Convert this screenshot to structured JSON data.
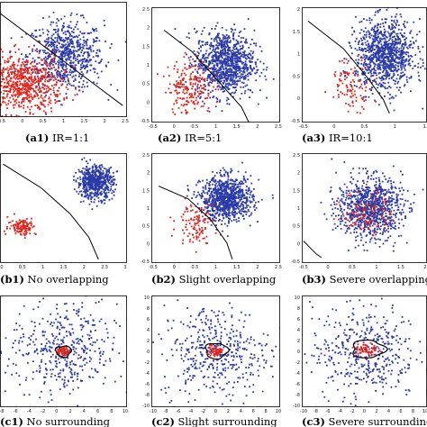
{
  "colors": {
    "majority": "#2b3aa6",
    "minority": "#e0241b",
    "boundary": "#000000",
    "frame": "#000000"
  },
  "chart_data": [
    {
      "id": "a1",
      "type": "scatter",
      "caption_id": "(a1)",
      "caption_text": " IR=1:1",
      "xlim": [
        -0.5,
        2.5
      ],
      "ylim": [
        -0.5,
        2.5
      ],
      "xticks": [
        "0.5",
        "0",
        "0.5",
        "1",
        "1.5",
        "2",
        "2.5"
      ],
      "yticks": [],
      "majority": {
        "n": 700,
        "cx": 1.05,
        "cy": 1.1,
        "sx": 0.45,
        "sy": 0.45
      },
      "minority": {
        "n": 700,
        "cx": 0.05,
        "cy": 0.35,
        "sx": 0.45,
        "sy": 0.38
      },
      "boundary": {
        "kind": "line",
        "points": [
          [
            -0.5,
            2.2
          ],
          [
            2.4,
            -0.2
          ]
        ]
      }
    },
    {
      "id": "a2",
      "type": "scatter",
      "caption_id": "(a2)",
      "caption_text": " IR=5:1",
      "xlim": [
        -1,
        2.5
      ],
      "ylim": [
        -0.5,
        2.5
      ],
      "xticks": [
        "-0.5",
        "0",
        "0.5",
        "1",
        "1.5",
        "2",
        "2.5"
      ],
      "yticks": [
        "2.5",
        "2",
        "1.5",
        "1",
        "0.5",
        "0",
        "-0.5"
      ],
      "majority": {
        "n": 1000,
        "cx": 1.0,
        "cy": 1.05,
        "sx": 0.4,
        "sy": 0.42
      },
      "minority": {
        "n": 200,
        "cx": 0.05,
        "cy": 0.45,
        "sx": 0.3,
        "sy": 0.35
      },
      "boundary": {
        "kind": "curve",
        "points": [
          [
            -0.65,
            1.9
          ],
          [
            0.1,
            1.35
          ],
          [
            0.8,
            0.6
          ],
          [
            1.45,
            -0.1
          ],
          [
            1.65,
            -0.5
          ]
        ]
      }
    },
    {
      "id": "a3",
      "type": "scatter",
      "caption_id": "(a3)",
      "caption_text": " IR=10:1",
      "xlim": [
        -1,
        2.0
      ],
      "ylim": [
        -0.5,
        2.0
      ],
      "xticks": [
        "-0.5",
        "0",
        "0.5",
        "1",
        "1."
      ],
      "yticks": [
        "2",
        "1.5",
        "1",
        "0.5",
        "0",
        "-0.5"
      ],
      "majority": {
        "n": 1000,
        "cx": 1.0,
        "cy": 0.95,
        "sx": 0.35,
        "sy": 0.38
      },
      "minority": {
        "n": 100,
        "cx": 0.2,
        "cy": 0.35,
        "sx": 0.25,
        "sy": 0.28
      },
      "boundary": {
        "kind": "curve",
        "points": [
          [
            -0.85,
            1.7
          ],
          [
            0.0,
            1.1
          ],
          [
            0.55,
            0.5
          ],
          [
            0.95,
            0.0
          ],
          [
            1.1,
            -0.3
          ]
        ]
      }
    },
    {
      "id": "b1",
      "type": "scatter",
      "caption_id": "(b1)",
      "caption_text": " No overlapping",
      "xlim": [
        -1,
        3
      ],
      "ylim": [
        -0.5,
        2.5
      ],
      "xticks": [
        "0",
        "0.5",
        "1",
        "1.5",
        "2",
        "2.5",
        "3"
      ],
      "yticks": [],
      "majority": {
        "n": 600,
        "cx": 2.0,
        "cy": 1.7,
        "sx": 0.28,
        "sy": 0.22
      },
      "minority": {
        "n": 120,
        "cx": -0.3,
        "cy": 0.5,
        "sx": 0.22,
        "sy": 0.12
      },
      "boundary": {
        "kind": "curve",
        "points": [
          [
            -0.9,
            2.2
          ],
          [
            0.3,
            1.55
          ],
          [
            1.2,
            0.85
          ],
          [
            1.8,
            0.2
          ],
          [
            2.1,
            -0.4
          ]
        ]
      }
    },
    {
      "id": "b2",
      "type": "scatter",
      "caption_id": "(b2)",
      "caption_text": " Slight overlapping",
      "xlim": [
        -1,
        2.5
      ],
      "ylim": [
        -0.5,
        2.5
      ],
      "xticks": [
        "-0.5",
        "0",
        "0.5",
        "1",
        "1.5",
        "2",
        "2.5"
      ],
      "yticks": [
        "2.5",
        "2",
        "1.5",
        "1",
        "0.5",
        "0",
        "-0.5"
      ],
      "majority": {
        "n": 900,
        "cx": 1.05,
        "cy": 1.25,
        "sx": 0.35,
        "sy": 0.3
      },
      "minority": {
        "n": 110,
        "cx": 0.2,
        "cy": 0.6,
        "sx": 0.25,
        "sy": 0.28
      },
      "boundary": {
        "kind": "curve",
        "points": [
          [
            -0.8,
            1.6
          ],
          [
            0.0,
            1.25
          ],
          [
            0.6,
            0.7
          ],
          [
            1.05,
            0.05
          ],
          [
            1.2,
            -0.4
          ]
        ]
      }
    },
    {
      "id": "b3",
      "type": "scatter",
      "caption_id": "(b3)",
      "caption_text": " Severe overlapping",
      "xlim": [
        -1,
        2.5
      ],
      "ylim": [
        -0.5,
        2.5
      ],
      "xticks": [
        "-0.5",
        "0",
        "0.5",
        "1",
        "1.5",
        "2"
      ],
      "yticks": [
        "2.5",
        "2",
        "1.5",
        "1",
        "0.5",
        "0",
        "-0.5"
      ],
      "majority": {
        "n": 900,
        "cx": 0.9,
        "cy": 1.0,
        "sx": 0.45,
        "sy": 0.42
      },
      "minority": {
        "n": 110,
        "cx": 0.85,
        "cy": 0.9,
        "sx": 0.35,
        "sy": 0.3
      },
      "boundary": {
        "kind": "curve",
        "points": [
          [
            -0.95,
            0.1
          ],
          [
            -0.75,
            -0.1
          ],
          [
            -0.6,
            -0.25
          ],
          [
            -0.45,
            -0.35
          ]
        ]
      }
    },
    {
      "id": "c1",
      "type": "scatter",
      "caption_id": "(c1)",
      "caption_text": " No surrounding",
      "xlim": [
        -10,
        10
      ],
      "ylim": [
        -10,
        10
      ],
      "xticks": [
        "-8",
        "-6",
        "-4",
        "-2",
        "0",
        "2",
        "4",
        "6",
        "8",
        "10"
      ],
      "yticks": [],
      "majority": {
        "n": 420,
        "cx": 0,
        "cy": 0,
        "sx": 4.2,
        "sy": 4.2
      },
      "minority": {
        "n": 70,
        "cx": 0,
        "cy": 0,
        "sx": 0.5,
        "sy": 0.4
      },
      "boundary": {
        "kind": "blob",
        "cx": 0,
        "cy": 0,
        "rx": 1.2,
        "ry": 1.0
      }
    },
    {
      "id": "c2",
      "type": "scatter",
      "caption_id": "(c2)",
      "caption_text": " Slight surrounding",
      "xlim": [
        -10,
        10
      ],
      "ylim": [
        -10,
        10
      ],
      "xticks": [
        "-10",
        "-8",
        "-6",
        "-4",
        "-2",
        "0",
        "2",
        "4",
        "6",
        "8",
        "10"
      ],
      "yticks": [
        "10",
        "8",
        "6",
        "4",
        "2",
        "0",
        "-2",
        "-4",
        "-6",
        "-8",
        "-10"
      ],
      "majority": {
        "n": 420,
        "cx": 0,
        "cy": 0,
        "sx": 4.2,
        "sy": 4.2
      },
      "minority": {
        "n": 60,
        "cx": 0,
        "cy": 0,
        "sx": 0.6,
        "sy": 0.55
      },
      "boundary": {
        "kind": "blob",
        "cx": 0.1,
        "cy": 0.1,
        "rx": 1.7,
        "ry": 1.4
      }
    },
    {
      "id": "c3",
      "type": "scatter",
      "caption_id": "(c3)",
      "caption_text": " Severe surrounding",
      "xlim": [
        -10,
        10
      ],
      "ylim": [
        -10,
        10
      ],
      "xticks": [
        "-10",
        "-8",
        "-6",
        "-4",
        "-2",
        "0",
        "2",
        "4",
        "6",
        "8",
        "10"
      ],
      "yticks": [
        "10",
        "8",
        "6",
        "4",
        "2",
        "0",
        "-2",
        "-4",
        "-6",
        "-8",
        "-10"
      ],
      "majority": {
        "n": 420,
        "cx": 0,
        "cy": 0,
        "sx": 4.2,
        "sy": 4.2
      },
      "minority": {
        "n": 60,
        "cx": 0.3,
        "cy": 0.3,
        "sx": 0.9,
        "sy": 0.7
      },
      "boundary": {
        "kind": "blob",
        "cx": 0.6,
        "cy": 0.4,
        "rx": 2.6,
        "ry": 1.6
      }
    }
  ]
}
